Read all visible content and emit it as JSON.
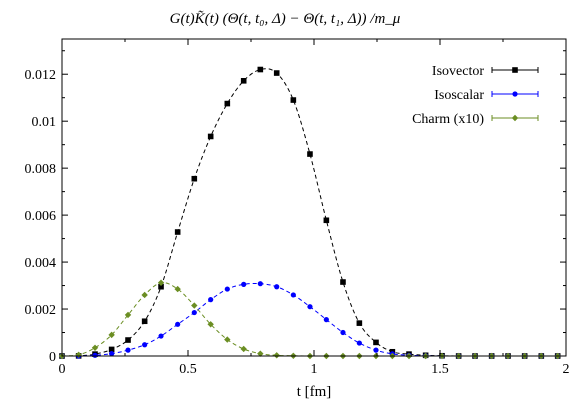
{
  "chart_data": {
    "type": "scatter",
    "title": "G(t)K̃(t) (Θ(t, t₀, Δ) − Θ(t, t₁, Δ)) /m_μ",
    "xlabel": "t [fm]",
    "ylabel": "",
    "xlim": [
      0,
      2
    ],
    "ylim": [
      0,
      0.0135
    ],
    "xticks": [
      0,
      0.5,
      1,
      1.5,
      2
    ],
    "xtick_labels": [
      "0",
      "0.5",
      "1",
      "1.5",
      "2"
    ],
    "yticks": [
      0,
      0.002,
      0.004,
      0.006,
      0.008,
      0.01,
      0.012
    ],
    "ytick_labels": [
      "0",
      "0.002",
      "0.004",
      "0.006",
      "0.008",
      "0.01",
      "0.012"
    ],
    "legend_position": "top-right",
    "series": [
      {
        "name": "Isovector",
        "color": "#000000",
        "marker": "square",
        "line": "dashed",
        "points": [
          [
            0.0,
            0.0
          ],
          [
            0.066,
            5e-06
          ],
          [
            0.131,
            8e-05
          ],
          [
            0.197,
            0.00028
          ],
          [
            0.262,
            0.00068
          ],
          [
            0.328,
            0.00148
          ],
          [
            0.393,
            0.00295
          ],
          [
            0.459,
            0.00528
          ],
          [
            0.525,
            0.00755
          ],
          [
            0.59,
            0.00935
          ],
          [
            0.656,
            0.01075
          ],
          [
            0.721,
            0.01172
          ],
          [
            0.787,
            0.0122
          ],
          [
            0.852,
            0.01205
          ],
          [
            0.918,
            0.0109
          ],
          [
            0.984,
            0.0086
          ],
          [
            1.049,
            0.00578
          ],
          [
            1.115,
            0.00315
          ],
          [
            1.18,
            0.0014
          ],
          [
            1.246,
            0.00058
          ],
          [
            1.311,
            0.00018
          ],
          [
            1.377,
            8e-05
          ],
          [
            1.443,
            3e-05
          ],
          [
            1.508,
            1e-05
          ],
          [
            1.574,
            0.0
          ],
          [
            1.639,
            0.0
          ],
          [
            1.705,
            0.0
          ],
          [
            1.77,
            0.0
          ],
          [
            1.836,
            0.0
          ],
          [
            1.902,
            0.0
          ],
          [
            1.967,
            0.0
          ]
        ]
      },
      {
        "name": "Isoscalar",
        "color": "#0000ff",
        "marker": "circle",
        "line": "dashed",
        "points": [
          [
            0.0,
            0.0
          ],
          [
            0.066,
            0.0
          ],
          [
            0.131,
            3e-05
          ],
          [
            0.197,
            0.0001
          ],
          [
            0.262,
            0.00025
          ],
          [
            0.328,
            0.00048
          ],
          [
            0.393,
            0.00085
          ],
          [
            0.459,
            0.00135
          ],
          [
            0.525,
            0.00185
          ],
          [
            0.59,
            0.0024
          ],
          [
            0.656,
            0.00285
          ],
          [
            0.721,
            0.00305
          ],
          [
            0.787,
            0.00308
          ],
          [
            0.852,
            0.00295
          ],
          [
            0.918,
            0.0026
          ],
          [
            0.984,
            0.0021
          ],
          [
            1.049,
            0.00155
          ],
          [
            1.115,
            0.001
          ],
          [
            1.18,
            0.00055
          ],
          [
            1.246,
            0.00025
          ],
          [
            1.311,
            9e-05
          ],
          [
            1.377,
            3e-05
          ],
          [
            1.443,
            1e-05
          ],
          [
            1.508,
            0.0
          ],
          [
            1.574,
            0.0
          ],
          [
            1.639,
            0.0
          ],
          [
            1.705,
            0.0
          ],
          [
            1.77,
            0.0
          ],
          [
            1.836,
            0.0
          ],
          [
            1.902,
            0.0
          ],
          [
            1.967,
            0.0
          ]
        ]
      },
      {
        "name": "Charm (x10)",
        "color": "#6b8e23",
        "marker": "diamond",
        "line": "dashed",
        "points": [
          [
            0.0,
            0.0
          ],
          [
            0.066,
            5e-05
          ],
          [
            0.131,
            0.00035
          ],
          [
            0.197,
            0.0009
          ],
          [
            0.262,
            0.00175
          ],
          [
            0.328,
            0.0026
          ],
          [
            0.393,
            0.00312
          ],
          [
            0.459,
            0.00285
          ],
          [
            0.525,
            0.00215
          ],
          [
            0.59,
            0.00135
          ],
          [
            0.656,
            0.0007
          ],
          [
            0.721,
            0.0003
          ],
          [
            0.787,
            0.0001
          ],
          [
            0.852,
            3e-05
          ],
          [
            0.918,
            1e-05
          ],
          [
            0.984,
            0.0
          ],
          [
            1.049,
            0.0
          ],
          [
            1.115,
            0.0
          ],
          [
            1.18,
            0.0
          ],
          [
            1.246,
            0.0
          ],
          [
            1.311,
            0.0
          ],
          [
            1.377,
            0.0
          ],
          [
            1.443,
            0.0
          ],
          [
            1.508,
            0.0
          ],
          [
            1.574,
            0.0
          ],
          [
            1.639,
            0.0
          ],
          [
            1.705,
            0.0
          ],
          [
            1.77,
            0.0
          ],
          [
            1.836,
            0.0
          ],
          [
            1.902,
            0.0
          ],
          [
            1.967,
            0.0
          ]
        ]
      }
    ]
  }
}
